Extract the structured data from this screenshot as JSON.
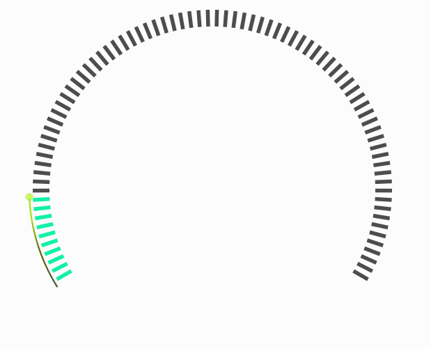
{
  "gauge": {
    "value_fraction": 0.12,
    "tick_count": 82,
    "sweep_degrees": 240,
    "colors": {
      "background": "#fcfcfc",
      "tick_inactive": "#4d4d4d",
      "tick_active": "#13f0a8",
      "indicator_glow": "#a4e01a",
      "indicator_line": "#333333"
    }
  }
}
